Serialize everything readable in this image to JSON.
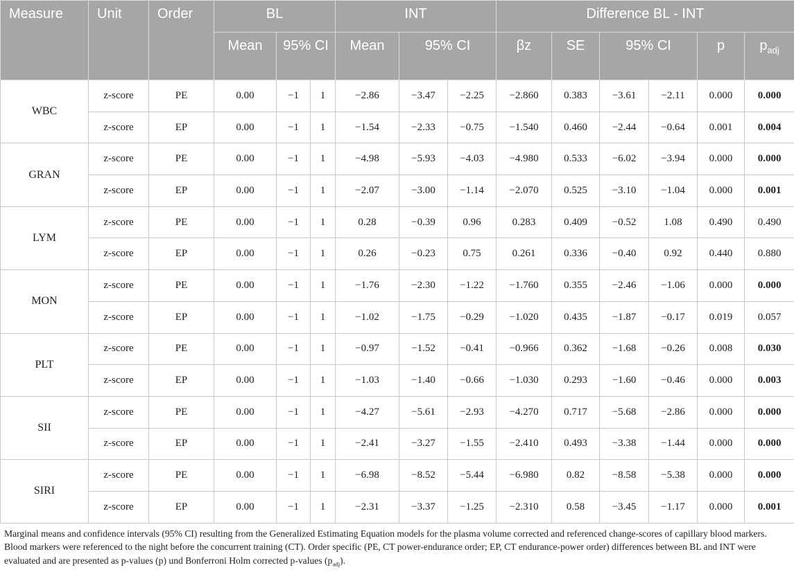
{
  "header": {
    "row1": [
      "Measure",
      "Unit",
      "Order",
      "BL",
      "INT",
      "Difference BL - INT"
    ],
    "row2": [
      "Mean",
      "95% CI",
      "Mean",
      "95% CI",
      "βz",
      "SE",
      "95% CI",
      "p"
    ],
    "padj": {
      "base": "p",
      "sub": "adj"
    }
  },
  "groups": [
    {
      "measure": "WBC",
      "rows": [
        {
          "cells": [
            "z-score",
            "PE",
            "0.00",
            "−1",
            "1",
            "−2.86",
            "−3.47",
            "−2.25",
            "−2.860",
            "0.383",
            "−3.61",
            "−2.11",
            "0.000",
            "0.000"
          ],
          "bold_last": true
        },
        {
          "cells": [
            "z-score",
            "EP",
            "0.00",
            "−1",
            "1",
            "−1.54",
            "−2.33",
            "−0.75",
            "−1.540",
            "0.460",
            "−2.44",
            "−0.64",
            "0.001",
            "0.004"
          ],
          "bold_last": true
        }
      ]
    },
    {
      "measure": "GRAN",
      "rows": [
        {
          "cells": [
            "z-score",
            "PE",
            "0.00",
            "−1",
            "1",
            "−4.98",
            "−5.93",
            "−4.03",
            "−4.980",
            "0.533",
            "−6.02",
            "−3.94",
            "0.000",
            "0.000"
          ],
          "bold_last": true
        },
        {
          "cells": [
            "z-score",
            "EP",
            "0.00",
            "−1",
            "1",
            "−2.07",
            "−3.00",
            "−1.14",
            "−2.070",
            "0.525",
            "−3.10",
            "−1.04",
            "0.000",
            "0.001"
          ],
          "bold_last": true
        }
      ]
    },
    {
      "measure": "LYM",
      "rows": [
        {
          "cells": [
            "z-score",
            "PE",
            "0.00",
            "−1",
            "1",
            "0.28",
            "−0.39",
            "0.96",
            "0.283",
            "0.409",
            "−0.52",
            "1.08",
            "0.490",
            "0.490"
          ],
          "bold_last": false
        },
        {
          "cells": [
            "z-score",
            "EP",
            "0.00",
            "−1",
            "1",
            "0.26",
            "−0.23",
            "0.75",
            "0.261",
            "0.336",
            "−0.40",
            "0.92",
            "0.440",
            "0.880"
          ],
          "bold_last": false
        }
      ]
    },
    {
      "measure": "MON",
      "rows": [
        {
          "cells": [
            "z-score",
            "PE",
            "0.00",
            "−1",
            "1",
            "−1.76",
            "−2.30",
            "−1.22",
            "−1.760",
            "0.355",
            "−2.46",
            "−1.06",
            "0.000",
            "0.000"
          ],
          "bold_last": true
        },
        {
          "cells": [
            "z-score",
            "EP",
            "0.00",
            "−1",
            "1",
            "−1.02",
            "−1.75",
            "−0.29",
            "−1.020",
            "0.435",
            "−1.87",
            "−0.17",
            "0.019",
            "0.057"
          ],
          "bold_last": false
        }
      ]
    },
    {
      "measure": "PLT",
      "rows": [
        {
          "cells": [
            "z-score",
            "PE",
            "0.00",
            "−1",
            "1",
            "−0.97",
            "−1.52",
            "−0.41",
            "−0.966",
            "0.362",
            "−1.68",
            "−0.26",
            "0.008",
            "0.030"
          ],
          "bold_last": true
        },
        {
          "cells": [
            "z-score",
            "EP",
            "0.00",
            "−1",
            "1",
            "−1.03",
            "−1.40",
            "−0.66",
            "−1.030",
            "0.293",
            "−1.60",
            "−0.46",
            "0.000",
            "0.003"
          ],
          "bold_last": true
        }
      ]
    },
    {
      "measure": "SII",
      "rows": [
        {
          "cells": [
            "z-score",
            "PE",
            "0.00",
            "−1",
            "1",
            "−4.27",
            "−5.61",
            "−2.93",
            "−4.270",
            "0.717",
            "−5.68",
            "−2.86",
            "0.000",
            "0.000"
          ],
          "bold_last": true
        },
        {
          "cells": [
            "z-score",
            "EP",
            "0.00",
            "−1",
            "1",
            "−2.41",
            "−3.27",
            "−1.55",
            "−2.410",
            "0.493",
            "−3.38",
            "−1.44",
            "0.000",
            "0.000"
          ],
          "bold_last": true
        }
      ]
    },
    {
      "measure": "SIRI",
      "rows": [
        {
          "cells": [
            "z-score",
            "PE",
            "0.00",
            "−1",
            "1",
            "−6.98",
            "−8.52",
            "−5.44",
            "−6.980",
            "0.82",
            "−8.58",
            "−5.38",
            "0.000",
            "0.000"
          ],
          "bold_last": true
        },
        {
          "cells": [
            "z-score",
            "EP",
            "0.00",
            "−1",
            "1",
            "−2.31",
            "−3.37",
            "−1.25",
            "−2.310",
            "0.58",
            "−3.45",
            "−1.17",
            "0.000",
            "0.001"
          ],
          "bold_last": true
        }
      ]
    }
  ],
  "footnote": {
    "before": "Marginal means and confidence intervals (95% CI) resulting from the Generalized Estimating Equation models for the plasma volume corrected and referenced change-scores of capillary blood markers. Blood markers were referenced to the night before the concurrent training (CT). Order specific (PE, CT power-endurance order; EP, CT endurance-power order) differences between BL and INT were evaluated and are presented as p-values (p) und Bonferroni Holm corrected p-values (p",
    "sub": "adj",
    "after": ")."
  }
}
